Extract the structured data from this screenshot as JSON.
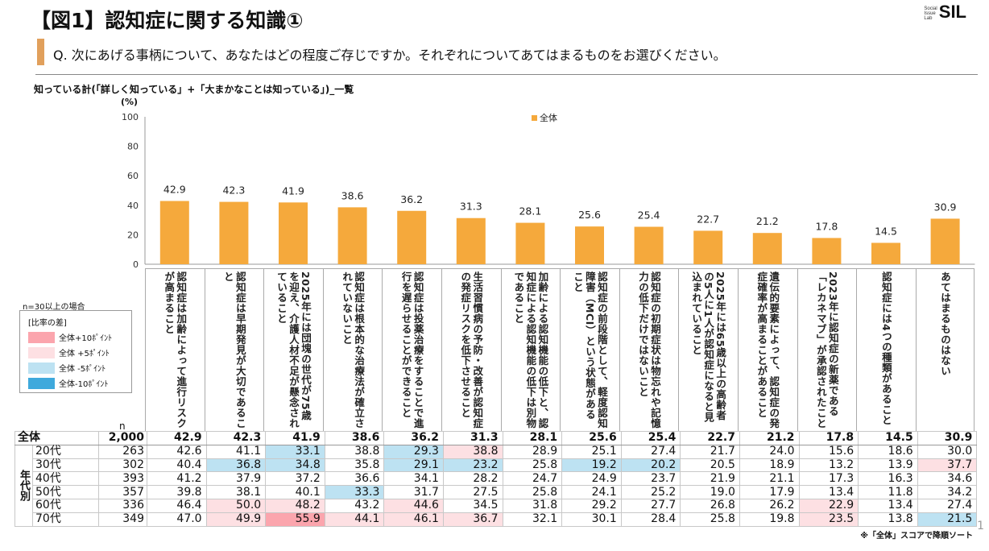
{
  "title": "【図1】認知症に関する知識①",
  "logo": {
    "small": "Social Issue Lab",
    "big": "SIL"
  },
  "question": "Q. 次にあげる事柄について、あなたはどの程度ご存じですか。それぞれについてあてはまるものをお選びください。",
  "subtitle": "知っている計(「詳しく知っている」+「大まかなことは知っている」)_一覧",
  "legend": {
    "note": "n=30以上の場合",
    "title": "[比率の差]",
    "items": [
      {
        "label": "全体+10ﾎﾟｲﾝﾄ",
        "cls": "p10",
        "color": "#FBA5AD"
      },
      {
        "label": "全体 +5ﾎﾟｲﾝﾄ",
        "cls": "p5",
        "color": "#FDE0E3"
      },
      {
        "label": "全体 -5ﾎﾟｲﾝﾄ",
        "cls": "m5",
        "color": "#BDE2F2"
      },
      {
        "label": "全体-10ﾎﾟｲﾝﾄ",
        "cls": "m10",
        "color": "#3FA9DC"
      }
    ]
  },
  "table": {
    "n_header": "n",
    "group_label": "年代別",
    "rows": [
      {
        "label": "全体",
        "n": "2,000"
      },
      {
        "label": "20代",
        "n": "263",
        "values": [
          42.6,
          41.1,
          33.1,
          38.8,
          29.3,
          38.8,
          28.9,
          25.1,
          27.4,
          21.7,
          24.0,
          15.6,
          18.6,
          30.0
        ],
        "flags": [
          "",
          "",
          "m5",
          "",
          "m5",
          "p5",
          "",
          "",
          "",
          "",
          "",
          "",
          "",
          ""
        ]
      },
      {
        "label": "30代",
        "n": "302",
        "values": [
          40.4,
          36.8,
          34.8,
          35.8,
          29.1,
          23.2,
          25.8,
          19.2,
          20.2,
          20.5,
          18.9,
          13.2,
          13.9,
          37.7
        ],
        "flags": [
          "",
          "m5",
          "m5",
          "",
          "m5",
          "m5",
          "",
          "m5",
          "m5",
          "",
          "",
          "",
          "",
          "p5"
        ]
      },
      {
        "label": "40代",
        "n": "393",
        "values": [
          41.2,
          37.9,
          37.2,
          36.6,
          34.1,
          28.2,
          24.7,
          24.9,
          23.7,
          21.9,
          21.1,
          17.3,
          16.3,
          34.6
        ],
        "flags": [
          "",
          "",
          "",
          "",
          "",
          "",
          "",
          "",
          "",
          "",
          "",
          "",
          "",
          ""
        ]
      },
      {
        "label": "50代",
        "n": "357",
        "values": [
          39.8,
          38.1,
          40.1,
          33.3,
          31.7,
          27.5,
          25.8,
          24.1,
          25.2,
          19.0,
          17.9,
          13.4,
          11.8,
          34.2
        ],
        "flags": [
          "",
          "",
          "",
          "m5",
          "",
          "",
          "",
          "",
          "",
          "",
          "",
          "",
          "",
          ""
        ]
      },
      {
        "label": "60代",
        "n": "336",
        "values": [
          46.4,
          50.0,
          48.2,
          43.2,
          44.6,
          34.5,
          31.8,
          29.2,
          27.7,
          26.8,
          26.2,
          22.9,
          13.4,
          27.4
        ],
        "flags": [
          "",
          "p5",
          "p5",
          "",
          "p5",
          "",
          "",
          "",
          "",
          "",
          "",
          "p5",
          "",
          ""
        ]
      },
      {
        "label": "70代",
        "n": "349",
        "values": [
          47.0,
          49.9,
          55.9,
          44.1,
          46.1,
          36.7,
          32.1,
          30.1,
          28.4,
          25.8,
          19.8,
          23.5,
          13.8,
          21.5
        ],
        "flags": [
          "",
          "p5",
          "p10",
          "p5",
          "p5",
          "p5",
          "",
          "",
          "",
          "",
          "",
          "p5",
          "",
          "m5"
        ]
      }
    ]
  },
  "note": "※「全体」スコアで降順ソート",
  "page_number": "1",
  "chart_data": {
    "type": "bar",
    "unit_label": "(%)",
    "ylim": [
      0,
      100
    ],
    "yticks": [
      0,
      20,
      40,
      60,
      80,
      100
    ],
    "legend": "top-center",
    "bar_color": "#F5A93C",
    "series": [
      {
        "name": "全体",
        "values": [
          42.9,
          42.3,
          41.9,
          38.6,
          36.2,
          31.3,
          28.1,
          25.6,
          25.4,
          22.7,
          21.2,
          17.8,
          14.5,
          30.9
        ]
      }
    ],
    "categories": [
      "認知症は加齢によって進行リスクが高まること",
      "認知症は早期発見が大切であること",
      "2025年には団塊の世代が75歳を迎え、介護人材不足が懸念されていること",
      "認知症は根本的な治療法が確立されていないこと",
      "認知症は投薬治療をすることで進行を遅らせることができること",
      "生活習慣病の予防・改善が認知症の発症リスクを低下させること",
      "加齢による認知機能の低下と、認知症による認知機能の低下は別物であること",
      "認知症の前段階として、軽度認知障害（MCI）という状態があること",
      "認知症の初期症状は物忘れや記憶力の低下だけではないこと",
      "2025年には65歳以上の高齢者の5人に1人が認知症になると見込まれていること",
      "遺伝的要素によって、認知症の発症確率が高まることがあること",
      "2023年に認知症の新薬である「レカネマブ」が承認されたこと",
      "認知症には4つの種類があること",
      "あてはまるものはない"
    ]
  }
}
